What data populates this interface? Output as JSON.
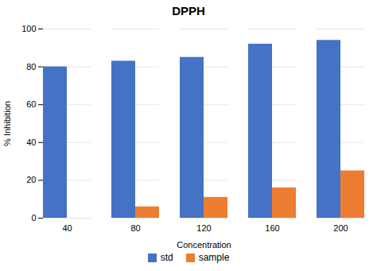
{
  "chart_data": {
    "type": "bar",
    "title": "DPPH",
    "xlabel": "Concentration",
    "ylabel": "% Inhibition",
    "categories": [
      40,
      80,
      120,
      160,
      200
    ],
    "series": [
      {
        "name": "std",
        "color": "#4472C4",
        "values": [
          80,
          83,
          85,
          92,
          94
        ]
      },
      {
        "name": "sample",
        "color": "#ED7D31",
        "values": [
          0,
          6,
          11,
          16,
          25
        ]
      }
    ],
    "ylim": [
      0,
      100
    ],
    "yticks": [
      0,
      20,
      40,
      60,
      80,
      100
    ],
    "grid": true,
    "legend": "bottom"
  }
}
